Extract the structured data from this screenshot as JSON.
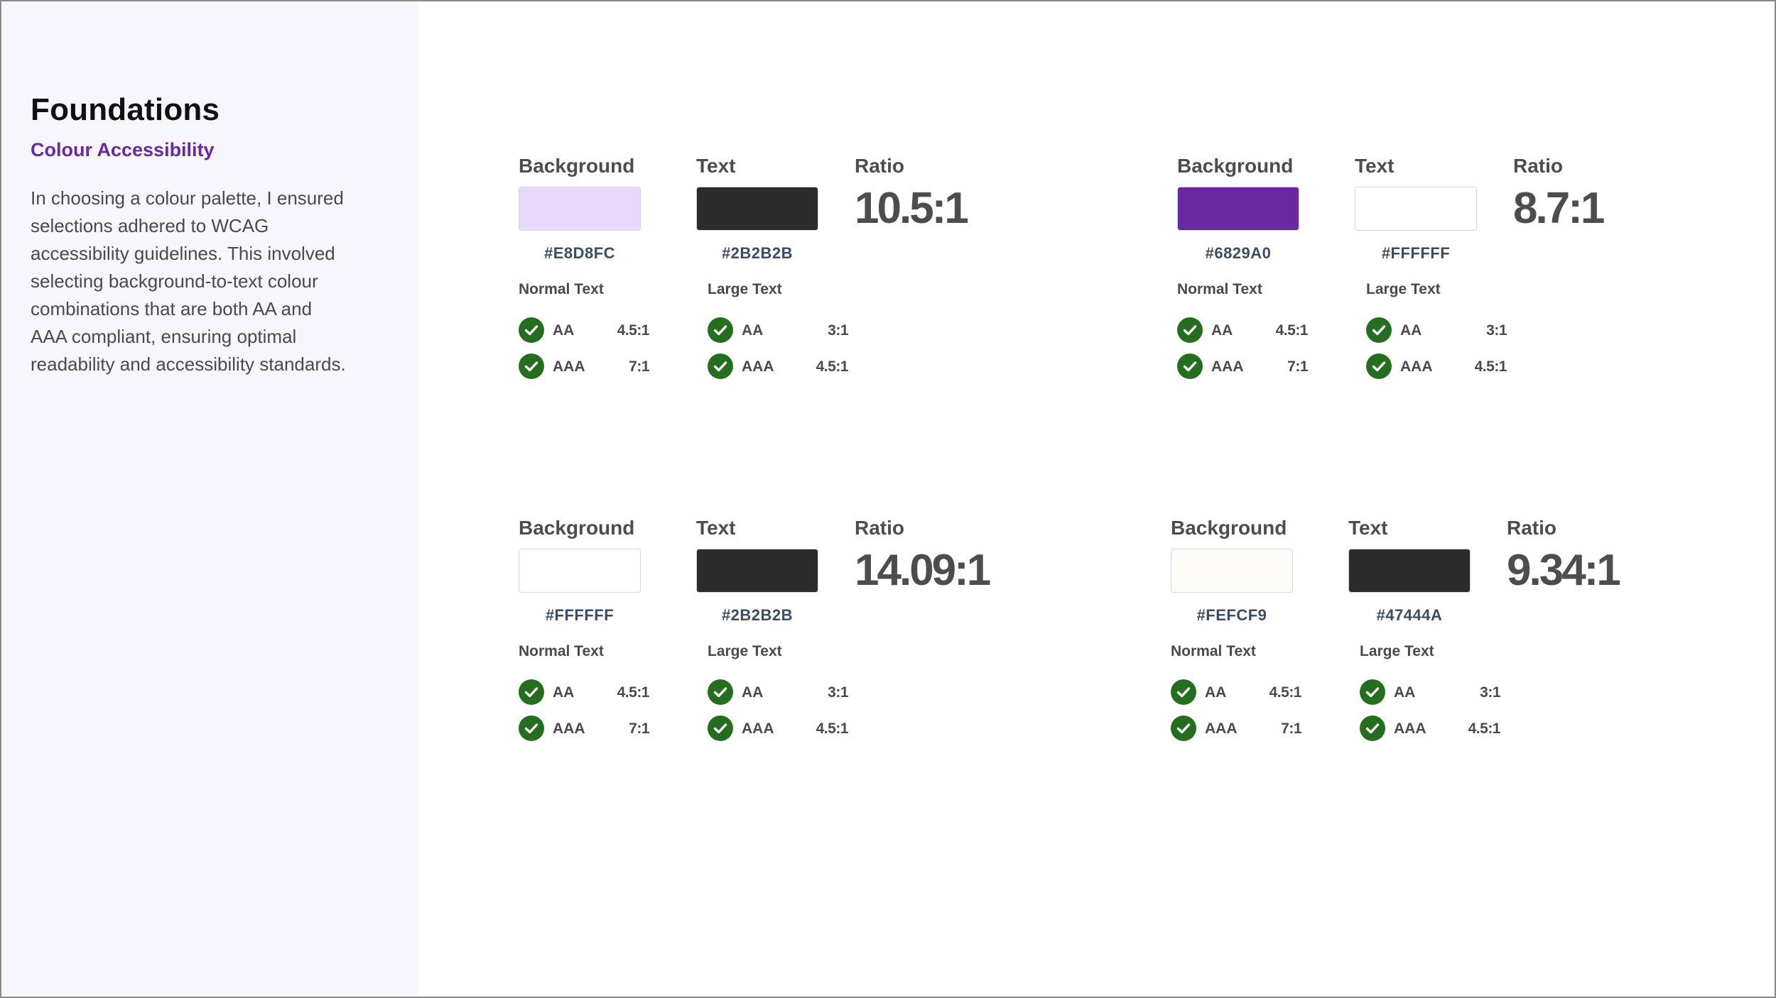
{
  "sidebar": {
    "title": "Foundations",
    "subtitle": "Colour Accessibility",
    "body": "In choosing a colour palette, I ensured selections adhered to WCAG accessibility guidelines. This involved selecting background-to-text colour combinations that are both AA and AAA compliant, ensuring optimal readability and accessibility standards."
  },
  "colors": {
    "accent": "#6829A0",
    "sidebar_bg": "#F8F6FD",
    "pass_green": "#256E1F"
  },
  "pairs": [
    {
      "background_label": "Background",
      "text_label": "Text",
      "ratio_label": "Ratio",
      "background_hex": "#E8D8FC",
      "text_hex": "#2B2B2B",
      "ratio": "10.5:1",
      "normal": {
        "title": "Normal Text",
        "aa": "AA",
        "aa_ratio": "4.5:1",
        "aaa": "AAA",
        "aaa_ratio": "7:1"
      },
      "large": {
        "title": "Large Text",
        "aa": "AA",
        "aa_ratio": "3:1",
        "aaa": "AAA",
        "aaa_ratio": "4.5:1"
      }
    },
    {
      "background_label": "Background",
      "text_label": "Text",
      "ratio_label": "Ratio",
      "background_hex": "#6829A0",
      "text_hex": "#FFFFFF",
      "ratio": "8.7:1",
      "normal": {
        "title": "Normal Text",
        "aa": "AA",
        "aa_ratio": "4.5:1",
        "aaa": "AAA",
        "aaa_ratio": "7:1"
      },
      "large": {
        "title": "Large Text",
        "aa": "AA",
        "aa_ratio": "3:1",
        "aaa": "AAA",
        "aaa_ratio": "4.5:1"
      }
    },
    {
      "background_label": "Background",
      "text_label": "Text",
      "ratio_label": "Ratio",
      "background_hex": "#FFFFFF",
      "text_hex": "#2B2B2B",
      "ratio": "14.09:1",
      "normal": {
        "title": "Normal Text",
        "aa": "AA",
        "aa_ratio": "4.5:1",
        "aaa": "AAA",
        "aaa_ratio": "7:1"
      },
      "large": {
        "title": "Large Text",
        "aa": "AA",
        "aa_ratio": "3:1",
        "aaa": "AAA",
        "aaa_ratio": "4.5:1"
      }
    },
    {
      "background_label": "Background",
      "text_label": "Text",
      "ratio_label": "Ratio",
      "background_hex": "#FEFCF9",
      "text_hex": "#47444A",
      "text_swatch_color": "#2B2B2B",
      "ratio": "9.34:1",
      "normal": {
        "title": "Normal Text",
        "aa": "AA",
        "aa_ratio": "4.5:1",
        "aaa": "AAA",
        "aaa_ratio": "7:1"
      },
      "large": {
        "title": "Large Text",
        "aa": "AA",
        "aa_ratio": "3:1",
        "aaa": "AAA",
        "aaa_ratio": "4.5:1"
      }
    }
  ]
}
